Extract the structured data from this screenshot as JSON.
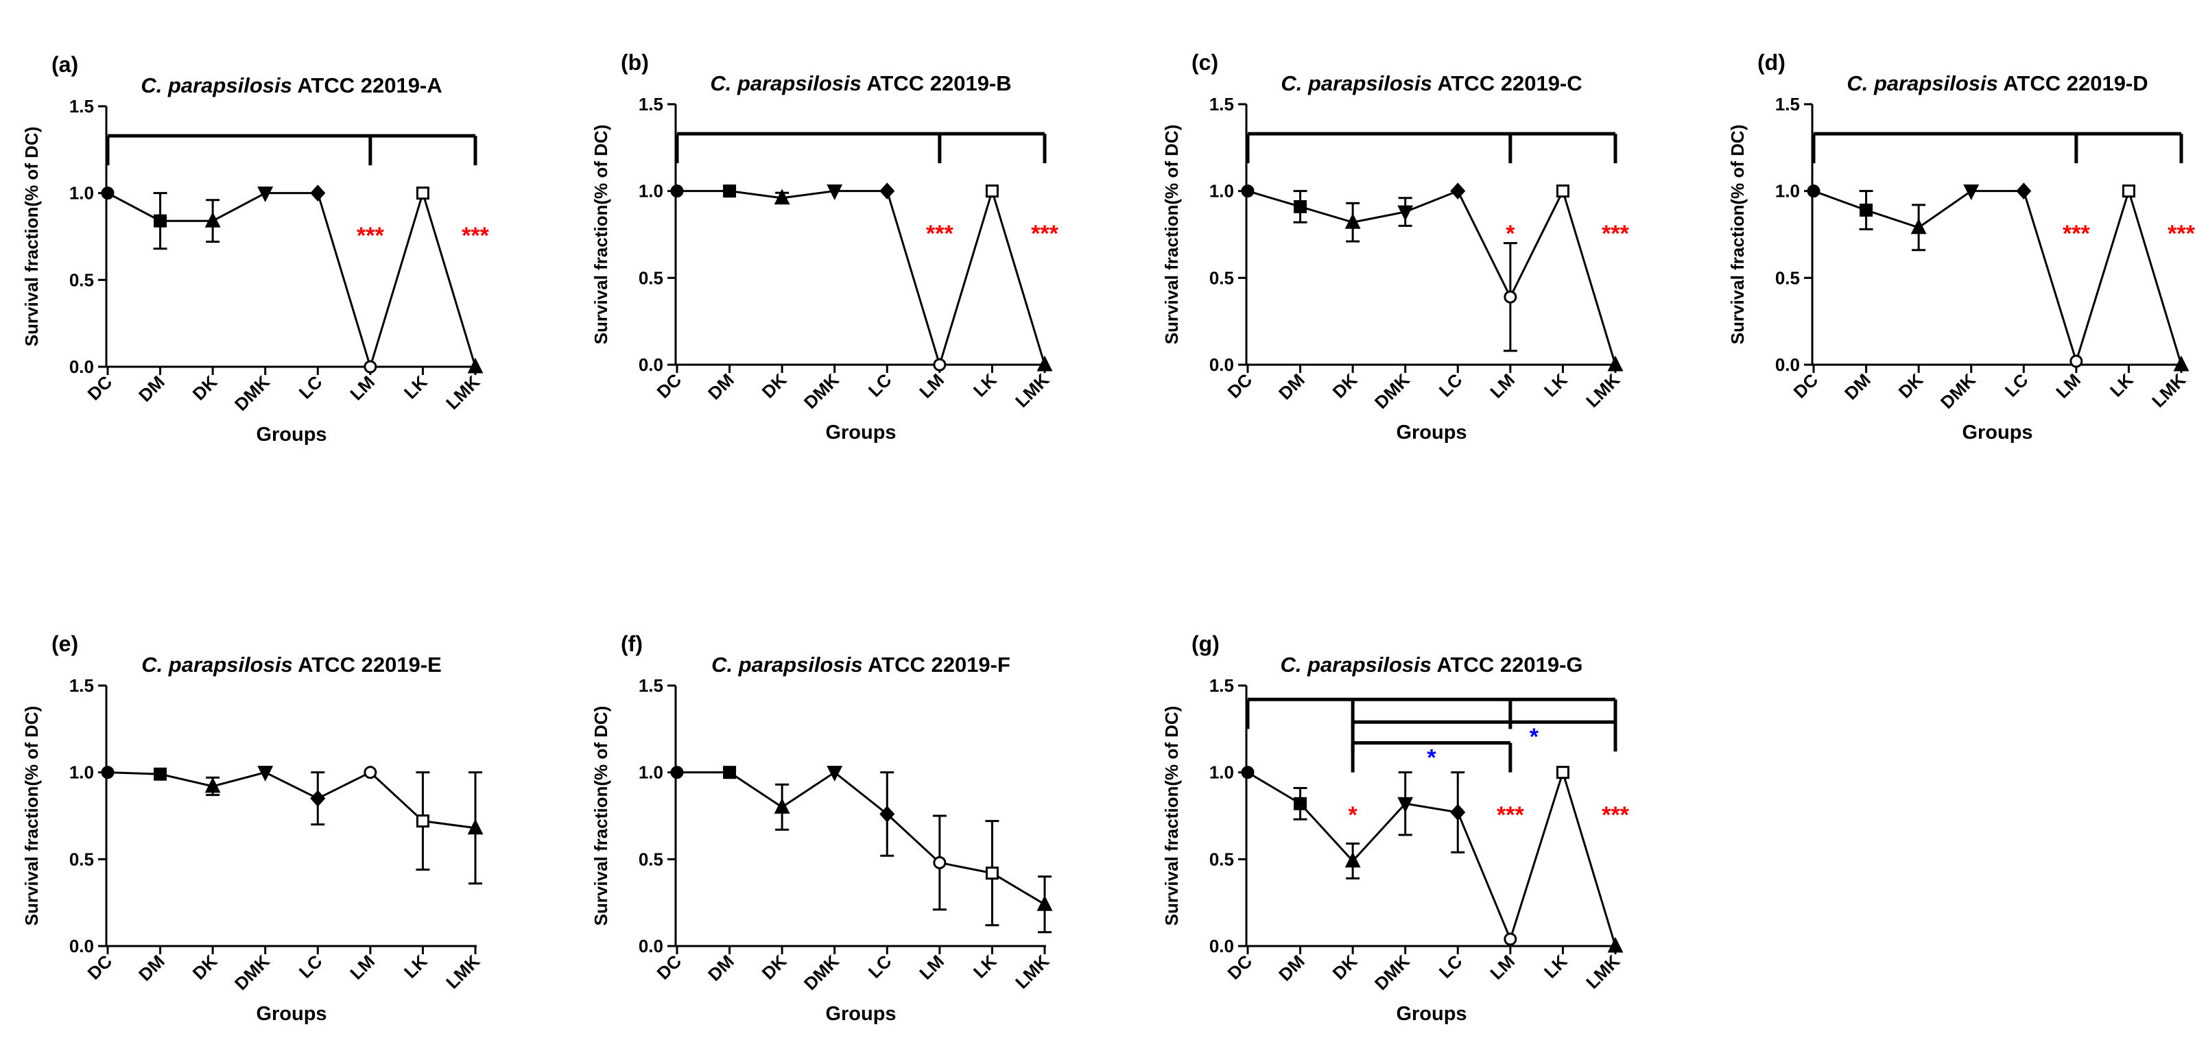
{
  "figure": {
    "common": {
      "categories": [
        "DC",
        "DM",
        "DK",
        "DMK",
        "LC",
        "LM",
        "LK",
        "LMK"
      ],
      "xlabel": "Groups",
      "ylabel": "Survival fraction(% of DC)",
      "ylim": [
        0,
        1.5
      ],
      "yticks": [
        "0.0",
        "0.5",
        "1.0",
        "1.5"
      ],
      "species": "C. parapsilosis",
      "strain_prefix": "ATCC 22019-"
    },
    "colors": {
      "line": "#000000",
      "sig_red": "#ff0000",
      "sig_blue": "#0000ff"
    },
    "marker_shapes": [
      "circle",
      "square",
      "triangle-up",
      "triangle-down",
      "diamond",
      "circle-open",
      "square-open",
      "triangle-up"
    ]
  },
  "chart_data": [
    {
      "type": "line",
      "panel_label": "(a)",
      "strain_suffix": "A",
      "values": [
        1.0,
        0.84,
        0.84,
        1.0,
        1.0,
        0.0,
        1.0,
        0.0
      ],
      "errors": [
        0,
        0.16,
        0.12,
        0,
        0,
        0,
        0,
        0
      ],
      "brackets": [
        {
          "from": "DC",
          "to": "LMK",
          "y": 1.33,
          "drops": [
            "DC",
            "LM",
            "LMK"
          ]
        }
      ],
      "annotations": [
        {
          "text": "***",
          "at": "LM",
          "y": 0.75,
          "color": "red"
        },
        {
          "text": "***",
          "at": "LMK",
          "y": 0.75,
          "color": "red"
        }
      ]
    },
    {
      "type": "line",
      "panel_label": "(b)",
      "strain_suffix": "B",
      "values": [
        1.0,
        1.0,
        0.96,
        1.0,
        1.0,
        0.0,
        1.0,
        0.0
      ],
      "errors": [
        0,
        0,
        0.03,
        0,
        0,
        0,
        0,
        0
      ],
      "brackets": [
        {
          "from": "DC",
          "to": "LMK",
          "y": 1.33,
          "drops": [
            "DC",
            "LM",
            "LMK"
          ]
        }
      ],
      "annotations": [
        {
          "text": "***",
          "at": "LM",
          "y": 0.75,
          "color": "red"
        },
        {
          "text": "***",
          "at": "LMK",
          "y": 0.75,
          "color": "red"
        }
      ]
    },
    {
      "type": "line",
      "panel_label": "(c)",
      "strain_suffix": "C",
      "values": [
        1.0,
        0.91,
        0.82,
        0.88,
        1.0,
        0.39,
        1.0,
        0.0
      ],
      "errors": [
        0,
        0.09,
        0.11,
        0.08,
        0,
        0.31,
        0,
        0
      ],
      "brackets": [
        {
          "from": "DC",
          "to": "LMK",
          "y": 1.33,
          "drops": [
            "DC",
            "LM",
            "LMK"
          ]
        }
      ],
      "annotations": [
        {
          "text": "*",
          "at": "LM",
          "y": 0.75,
          "color": "red"
        },
        {
          "text": "***",
          "at": "LMK",
          "y": 0.75,
          "color": "red"
        }
      ]
    },
    {
      "type": "line",
      "panel_label": "(d)",
      "strain_suffix": "D",
      "values": [
        1.0,
        0.89,
        0.79,
        1.0,
        1.0,
        0.02,
        1.0,
        0.0
      ],
      "errors": [
        0,
        0.11,
        0.13,
        0,
        0,
        0,
        0,
        0
      ],
      "brackets": [
        {
          "from": "DC",
          "to": "LMK",
          "y": 1.33,
          "drops": [
            "DC",
            "LM",
            "LMK"
          ]
        }
      ],
      "annotations": [
        {
          "text": "***",
          "at": "LM",
          "y": 0.75,
          "color": "red"
        },
        {
          "text": "***",
          "at": "LMK",
          "y": 0.75,
          "color": "red"
        }
      ]
    },
    {
      "type": "line",
      "panel_label": "(e)",
      "strain_suffix": "E",
      "values": [
        1.0,
        0.99,
        0.92,
        1.0,
        0.85,
        1.0,
        0.72,
        0.68
      ],
      "errors": [
        0,
        0,
        0.05,
        0,
        0.15,
        0,
        0.28,
        0.32
      ],
      "brackets": [],
      "annotations": []
    },
    {
      "type": "line",
      "panel_label": "(f)",
      "strain_suffix": "F",
      "values": [
        1.0,
        1.0,
        0.8,
        1.0,
        0.76,
        0.48,
        0.42,
        0.24
      ],
      "errors": [
        0,
        0,
        0.13,
        0,
        0.24,
        0.27,
        0.3,
        0.16
      ],
      "brackets": [],
      "annotations": []
    },
    {
      "type": "line",
      "panel_label": "(g)",
      "strain_suffix": "G",
      "values": [
        1.0,
        0.82,
        0.49,
        0.82,
        0.77,
        0.04,
        1.0,
        0.0
      ],
      "errors": [
        0,
        0.09,
        0.1,
        0.18,
        0.23,
        0,
        0,
        0
      ],
      "brackets": [
        {
          "from": "DC",
          "to": "LMK",
          "y": 1.42,
          "drops": [
            "DC",
            "DK",
            "LM",
            "LMK"
          ]
        },
        {
          "from": "DK",
          "to": "LMK",
          "y": 1.29,
          "drops": [
            "DK",
            "LMK"
          ]
        },
        {
          "from": "DK",
          "to": "LM",
          "y": 1.17,
          "drops": [
            "DK",
            "LM"
          ]
        }
      ],
      "annotations": [
        {
          "text": "*",
          "at": "DK",
          "y": 0.75,
          "color": "red"
        },
        {
          "text": "***",
          "at": "LM",
          "y": 0.75,
          "color": "red"
        },
        {
          "text": "***",
          "at": "LMK",
          "y": 0.75,
          "color": "red"
        },
        {
          "text": "*",
          "at": "DMK",
          "x_offset": 0.5,
          "y": 1.08,
          "color": "blue"
        },
        {
          "text": "*",
          "at": "LM",
          "x_offset": 0.45,
          "y": 1.2,
          "color": "blue"
        }
      ]
    }
  ]
}
